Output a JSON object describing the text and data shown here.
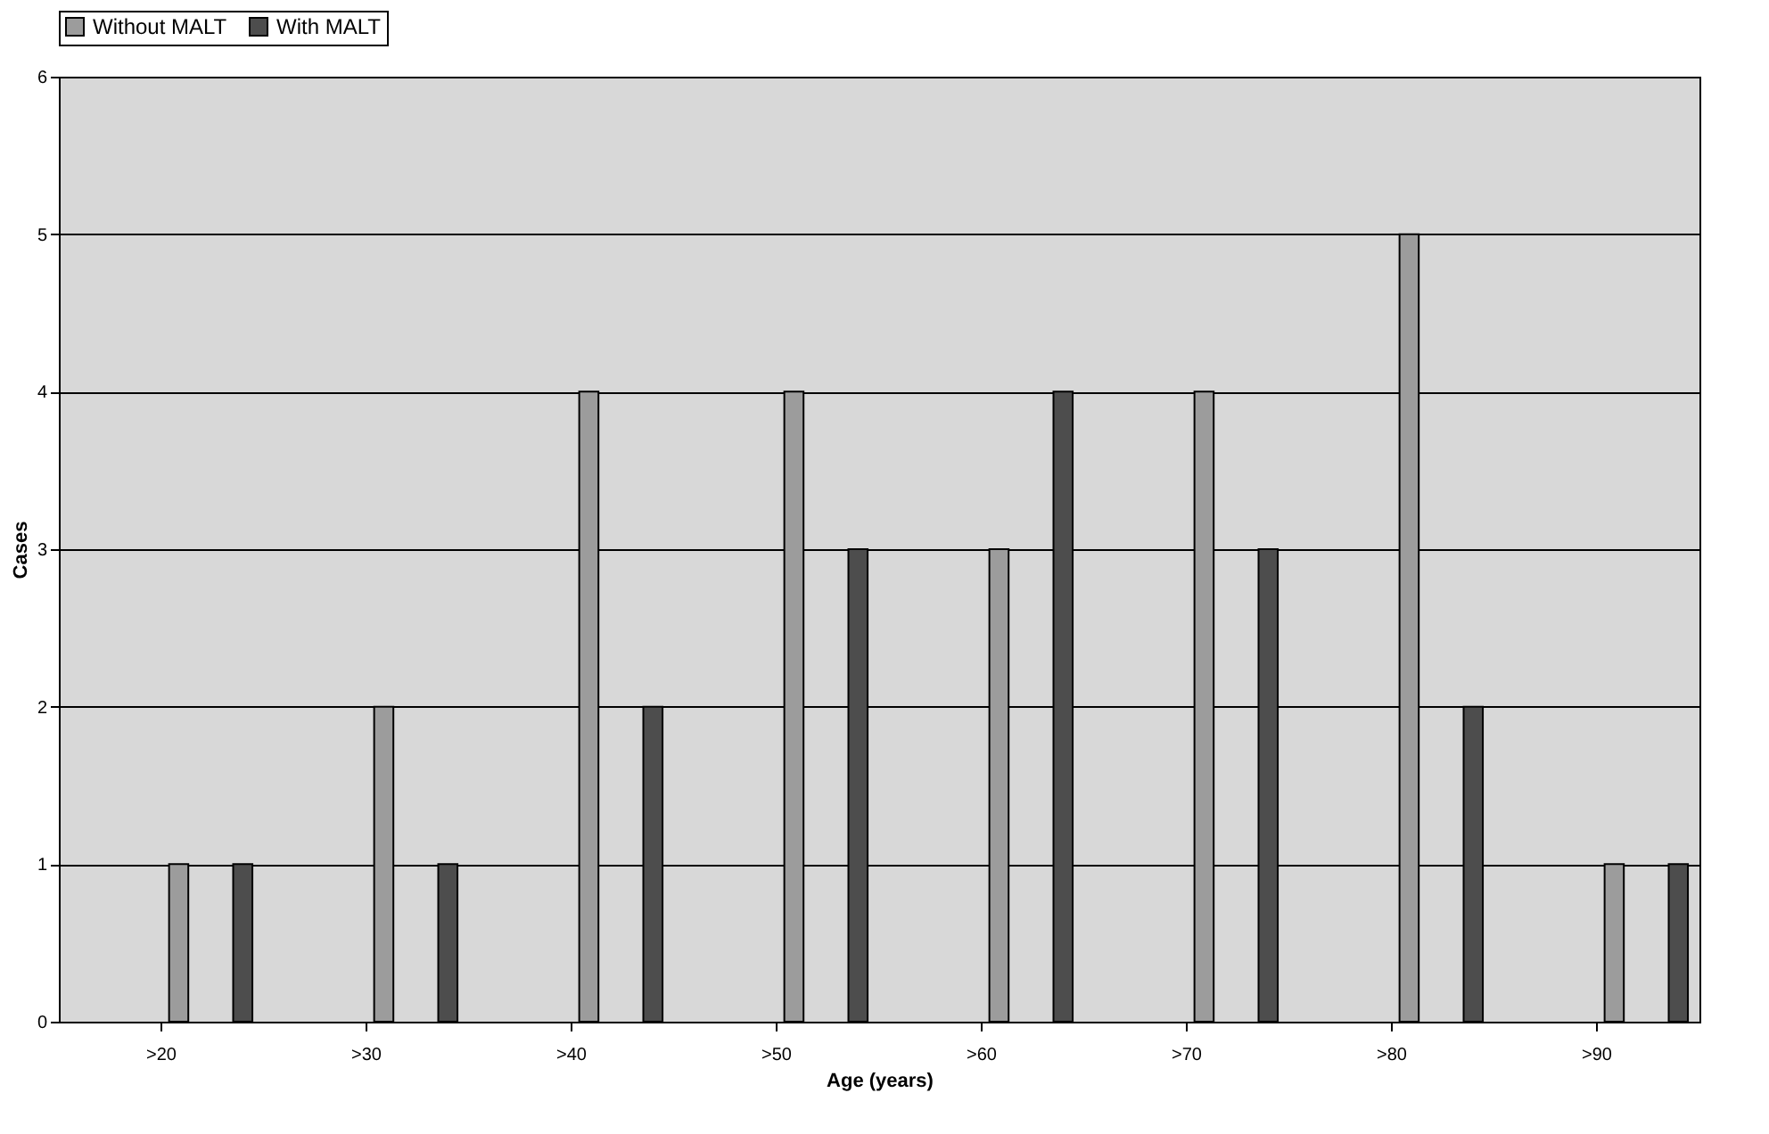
{
  "chart_data": {
    "type": "bar",
    "xlabel": "Age (years)",
    "ylabel": "Cases",
    "categories": [
      ">20",
      ">30",
      ">40",
      ">50",
      ">60",
      ">70",
      ">80",
      ">90"
    ],
    "series": [
      {
        "name": "Without MALT",
        "color": "#9c9c9c",
        "values": [
          1,
          2,
          4,
          4,
          3,
          4,
          5,
          1
        ]
      },
      {
        "name": "With MALT",
        "color": "#4d4d4d",
        "values": [
          1,
          1,
          2,
          3,
          4,
          3,
          2,
          1
        ]
      }
    ],
    "ylim": [
      0,
      6
    ],
    "yticks": [
      0,
      1,
      2,
      3,
      4,
      5,
      6
    ],
    "grid": "y",
    "legend": "top"
  }
}
